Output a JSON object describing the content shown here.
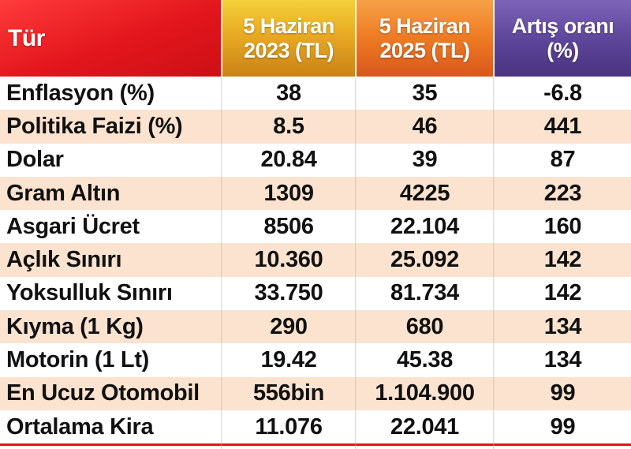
{
  "header": {
    "tur": "Tür",
    "col2023_line1": "5 Haziran",
    "col2023_line2": "2023 (TL)",
    "col2025_line1": "5 Haziran",
    "col2025_line2": "2025 (TL)",
    "artis_line1": "Artış oranı",
    "artis_line2": "(%)"
  },
  "rows": [
    {
      "tur": "Enflasyon (%)",
      "y2023": "38",
      "y2025": "35",
      "artis": "-6.8"
    },
    {
      "tur": "Politika Faizi (%)",
      "y2023": "8.5",
      "y2025": "46",
      "artis": "441"
    },
    {
      "tur": "Dolar",
      "y2023": "20.84",
      "y2025": "39",
      "artis": "87"
    },
    {
      "tur": "Gram Altın",
      "y2023": "1309",
      "y2025": "4225",
      "artis": "223"
    },
    {
      "tur": "Asgari Ücret",
      "y2023": "8506",
      "y2025": "22.104",
      "artis": "160"
    },
    {
      "tur": "Açlık Sınırı",
      "y2023": "10.360",
      "y2025": "25.092",
      "artis": "142"
    },
    {
      "tur": "Yoksulluk Sınırı",
      "y2023": "33.750",
      "y2025": "81.734",
      "artis": "142"
    },
    {
      "tur": "Kıyma (1 Kg)",
      "y2023": "290",
      "y2025": "680",
      "artis": "134"
    },
    {
      "tur": "Motorin (1 Lt)",
      "y2023": "19.42",
      "y2025": "45.38",
      "artis": "134"
    },
    {
      "tur": "En Ucuz Otomobil",
      "y2023": "556bin",
      "y2025": "1.104.900",
      "artis": "99"
    },
    {
      "tur": "Ortalama Kira",
      "y2023": "11.076",
      "y2025": "22.041",
      "artis": "99"
    }
  ],
  "colors": {
    "tur_header": "#e2161c",
    "col2023_header": "#e9aa23",
    "col2025_header": "#ee7a23",
    "artis_header": "#5c4499",
    "row_alt": "#fbe3cf",
    "row": "#ffffff"
  }
}
